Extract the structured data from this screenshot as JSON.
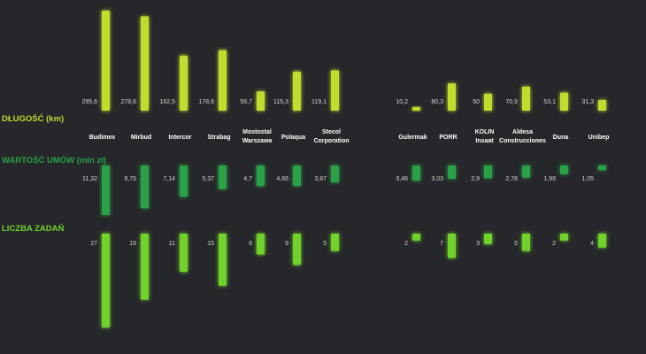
{
  "chart_data": {
    "type": "bar",
    "categories": [
      "Budimex",
      "Mirbud",
      "Intercor",
      "Strabag",
      "Mostostal Warszawa",
      "Polaqua",
      "Stecol Corporation",
      "Gulermak",
      "PORR",
      "KOLIN Insaat",
      "Aldesa Construcciones",
      "Duna",
      "Unibep"
    ],
    "series": [
      {
        "name": "DŁUGOŚĆ (km)",
        "values": [
          295.6,
          278.6,
          162.5,
          178.6,
          56.7,
          115.3,
          119.1,
          10.2,
          80.3,
          50,
          70.9,
          53.1,
          31.3
        ],
        "labels": [
          "295,6",
          "278,6",
          "162,5",
          "178,6",
          "56,7",
          "115,3",
          "119,1",
          "10,2",
          "80,3",
          "50",
          "70,9",
          "53,1",
          "31,3"
        ],
        "color": "#c2dc2e",
        "direction": "up"
      },
      {
        "name": "WARTOŚĆ UMÓW (mln zł)",
        "values": [
          11.32,
          9.75,
          7.14,
          5.37,
          4.7,
          4.66,
          3.87,
          3.46,
          3.03,
          2.9,
          2.78,
          1.99,
          1.05
        ],
        "labels": [
          "11,32",
          "9,75",
          "7,14",
          "5,37",
          "4,7",
          "4,66",
          "3,87",
          "3,46",
          "3,03",
          "2,9",
          "2,78",
          "1,99",
          "1,05"
        ],
        "color": "#2aa046",
        "direction": "down"
      },
      {
        "name": "LICZBA ZADAŃ",
        "values": [
          27,
          19,
          11,
          15,
          6,
          9,
          5,
          2,
          7,
          3,
          5,
          2,
          4
        ],
        "labels": [
          "27",
          "19",
          "11",
          "15",
          "6",
          "9",
          "5",
          "2",
          "7",
          "3",
          "5",
          "2",
          "4"
        ],
        "color": "#6fd22a",
        "direction": "down"
      }
    ]
  },
  "colors": {
    "background": "#26272b",
    "section_1": "#c2dc2e",
    "section_2": "#2aa046",
    "section_3": "#6fd22a",
    "value_text": "#d6d6d6",
    "category_text": "#ffffff"
  }
}
